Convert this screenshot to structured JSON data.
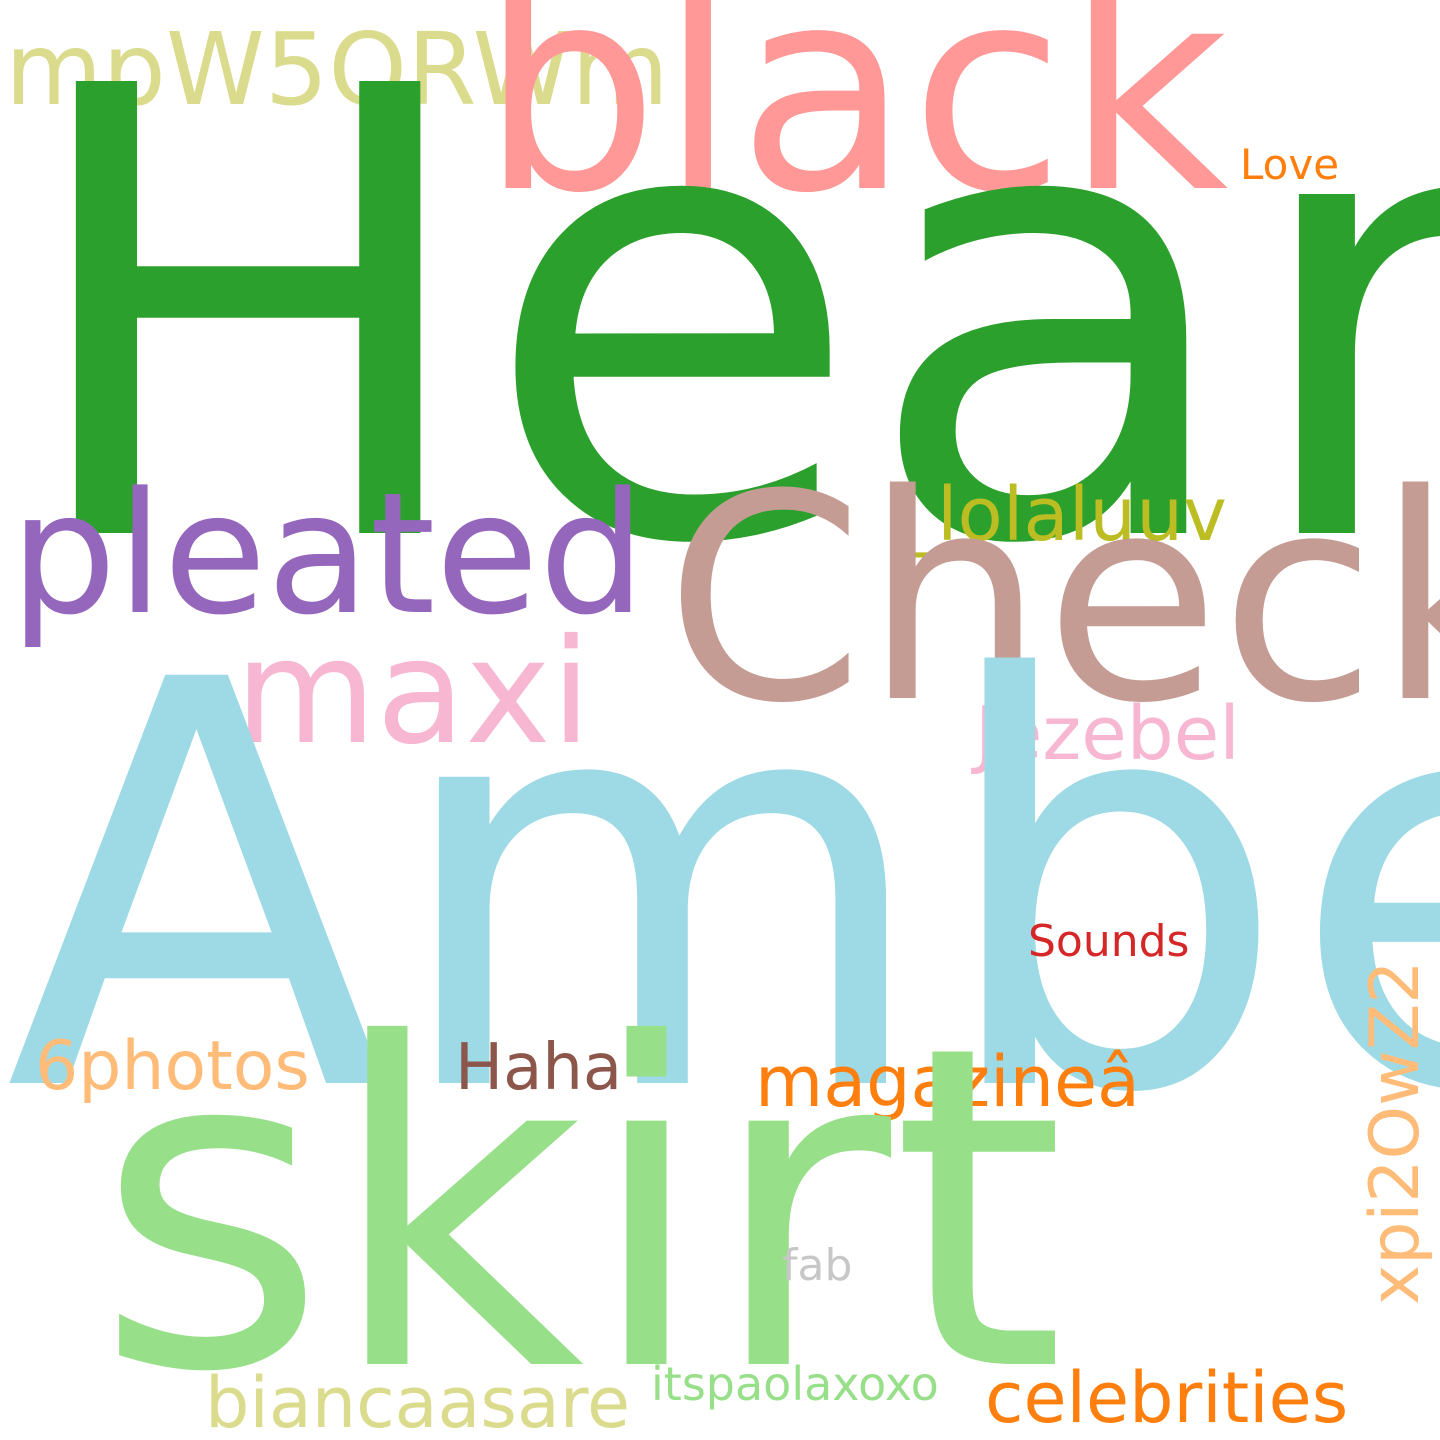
{
  "words": {
    "heard": {
      "text": "Heard",
      "color": "#2ca02c"
    },
    "amber": {
      "text": "Amber",
      "color": "#9edae5"
    },
    "skirt": {
      "text": "skirt",
      "color": "#98df8a"
    },
    "check": {
      "text": "Check",
      "color": "#c49c94"
    },
    "black": {
      "text": "black",
      "color": "#ff9896"
    },
    "pleated": {
      "text": "pleated",
      "color": "#9467bd"
    },
    "maxi": {
      "text": "maxi",
      "color": "#f7b6d2"
    },
    "mpw": {
      "text": "mpW5ORWm",
      "color": "#dbdb8d"
    },
    "lolaluuv": {
      "text": "_lolaluuv",
      "color": "#bcbd22"
    },
    "jezebel": {
      "text": "Jezebel",
      "color": "#f7b6d2"
    },
    "magazine": {
      "text": "magazineâ",
      "color": "#ff7f0e"
    },
    "celebrities": {
      "text": "celebrities",
      "color": "#ff7f0e"
    },
    "bianca": {
      "text": "biancaasare",
      "color": "#dbdb8d"
    },
    "sixphotos": {
      "text": "6photos",
      "color": "#ffbb78"
    },
    "haha": {
      "text": "Haha",
      "color": "#8c564b"
    },
    "sounds": {
      "text": "Sounds",
      "color": "#d62728"
    },
    "love": {
      "text": "Love",
      "color": "#ff7f0e"
    },
    "fab": {
      "text": "fab",
      "color": "#c7c7c7"
    },
    "itspaola": {
      "text": "itspaolaxoxo",
      "color": "#98df8a"
    },
    "xpi": {
      "text": "xpi2OwZ2",
      "color": "#ffbb78"
    }
  }
}
